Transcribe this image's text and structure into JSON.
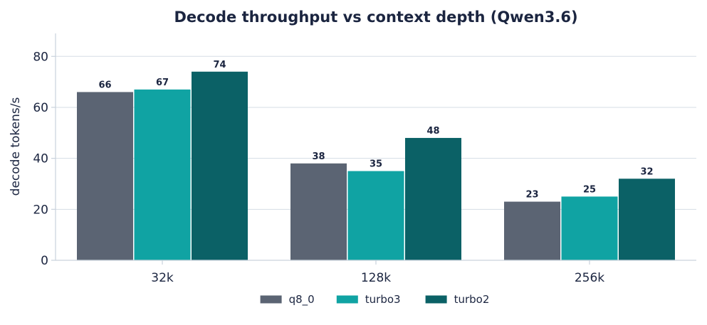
{
  "chart_data": {
    "type": "bar",
    "title": "Decode throughput vs context depth (Qwen3.6)",
    "xlabel": "",
    "ylabel": "decode tokens/s",
    "categories": [
      "32k",
      "128k",
      "256k"
    ],
    "series": [
      {
        "name": "q8_0",
        "values": [
          66,
          38,
          23
        ],
        "labels": [
          "66",
          "38",
          "23"
        ],
        "color": "#5b6473"
      },
      {
        "name": "turbo3",
        "values": [
          67,
          35,
          25
        ],
        "labels": [
          "67",
          "35",
          "25"
        ],
        "color": "#10a3a3"
      },
      {
        "name": "turbo2",
        "values": [
          74,
          48,
          32
        ],
        "labels": [
          "74",
          "48",
          "32"
        ],
        "color": "#0b6166"
      }
    ],
    "ylim": [
      0,
      89
    ],
    "yticks": [
      0,
      20,
      40,
      60,
      80
    ],
    "grid": true,
    "legend_position": "bottom-center"
  }
}
